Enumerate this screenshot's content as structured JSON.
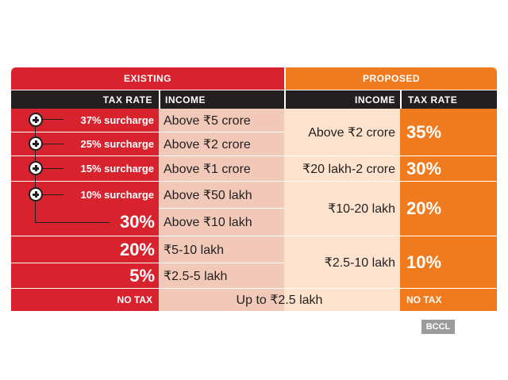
{
  "headers": {
    "existing": "EXISTING",
    "proposed": "PROPOSED",
    "tax_rate": "TAX RATE",
    "income": "INCOME"
  },
  "existing": {
    "surcharges": [
      "37% surcharge",
      "25% surcharge",
      "15% surcharge",
      "10% surcharge"
    ],
    "incomes": [
      "Above ₹5 crore",
      "Above ₹2 crore",
      "Above ₹1 crore",
      "Above ₹50 lakh",
      "Above ₹10 lakh",
      "₹5-10 lakh",
      "₹2.5-5 lakh"
    ],
    "rates": [
      "30%",
      "20%",
      "5%"
    ],
    "no_tax": "NO TAX"
  },
  "shared_income": "Up to ₹2.5 lakh",
  "proposed": {
    "incomes": [
      "Above ₹2 crore",
      "₹20 lakh-2 crore",
      "₹10-20 lakh",
      "₹2.5-10 lakh"
    ],
    "rates": [
      "35%",
      "30%",
      "20%",
      "10%"
    ],
    "no_tax": "NO TAX"
  },
  "credit": "BCCL",
  "colors": {
    "red": "#d8232e",
    "orange": "#f07b1f",
    "dark": "#231f20",
    "light_red": "#f2c9b8",
    "light_orange": "#fde3cd"
  }
}
